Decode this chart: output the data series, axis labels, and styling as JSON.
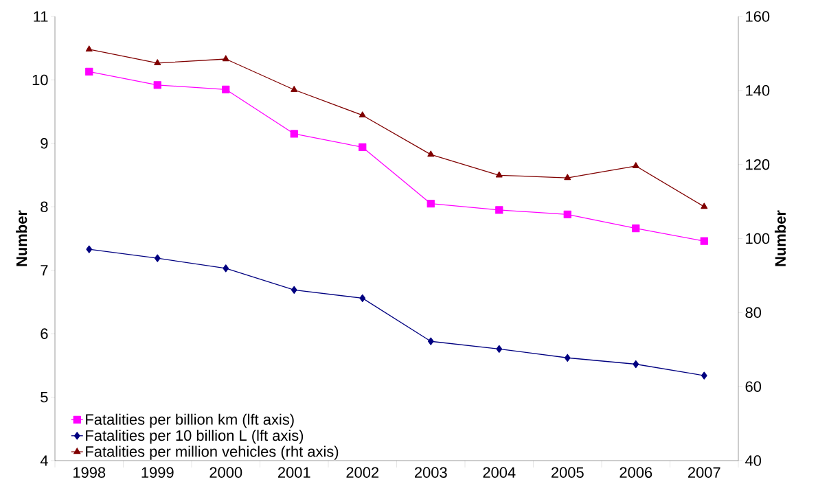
{
  "chart_data": {
    "type": "line",
    "ylabel": "Number",
    "y2label": "Number",
    "categories": [
      "1998",
      "1999",
      "2000",
      "2001",
      "2002",
      "2003",
      "2004",
      "2005",
      "2006",
      "2007"
    ],
    "series": [
      {
        "name": "Fatalities per billion km (lft axis)",
        "color": "#ff00ff",
        "marker": "square",
        "values": [
          10.13,
          9.92,
          9.85,
          9.15,
          8.94,
          8.05,
          7.95,
          7.88,
          7.66,
          7.46
        ]
      },
      {
        "name": "Fatalities per 10 billion L (lft axis)",
        "color": "#000080",
        "marker": "diamond",
        "values": [
          7.33,
          7.19,
          7.03,
          6.69,
          6.56,
          5.88,
          5.76,
          5.62,
          5.52,
          5.34
        ]
      },
      {
        "name": "Fatalities per million vehicles (rht axis)",
        "color": "#800000",
        "marker": "triangle",
        "axis": "y2",
        "values": [
          151.1,
          147.4,
          148.5,
          140.2,
          133.3,
          122.7,
          117.1,
          116.4,
          119.6,
          108.6
        ]
      }
    ],
    "ylim": [
      4,
      11
    ],
    "yticks": [
      4,
      5,
      6,
      7,
      8,
      9,
      10,
      11
    ],
    "y2lim": [
      40,
      160
    ],
    "y2ticks": [
      40,
      60,
      80,
      100,
      120,
      140,
      160
    ],
    "legend": "bottom left",
    "grid": false,
    "line_style": "solid"
  }
}
